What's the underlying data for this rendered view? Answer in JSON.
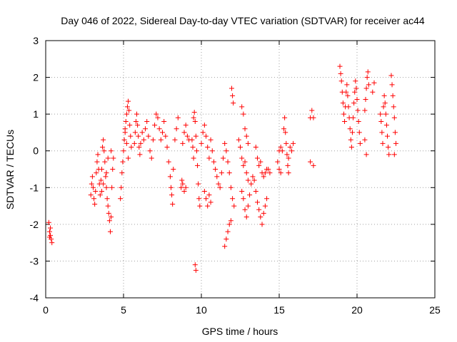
{
  "chart_data": {
    "type": "scatter",
    "title": "Day 046 of 2022, Sidereal Day-to-day VTEC variation (SDTVAR) for receiver ac44",
    "xlabel": "GPS time / hours",
    "ylabel": "SDTVAR / TECUs",
    "xlim": [
      0,
      25
    ],
    "ylim": [
      -4,
      3
    ],
    "xticks": [
      0,
      5,
      10,
      15,
      20,
      25
    ],
    "yticks": [
      -4,
      -3,
      -2,
      -1,
      0,
      1,
      2,
      3
    ],
    "xtick_labels": [
      "0",
      "5",
      "10",
      "15",
      "20",
      "25"
    ],
    "ytick_labels": [
      "-4",
      "-3",
      "-2",
      "-1",
      "0",
      "1",
      "2",
      "3"
    ],
    "grid": true,
    "marker": "plus",
    "color": "#ff0000",
    "series": [
      {
        "name": "SDTVAR",
        "points": [
          [
            0.2,
            -1.95
          ],
          [
            0.25,
            -2.2
          ],
          [
            0.3,
            -2.3
          ],
          [
            0.35,
            -2.4
          ],
          [
            0.4,
            -2.5
          ],
          [
            0.3,
            -2.1
          ],
          [
            0.25,
            -2.35
          ],
          [
            2.9,
            -1.2
          ],
          [
            2.95,
            -0.9
          ],
          [
            3.0,
            -0.7
          ],
          [
            3.05,
            -1.0
          ],
          [
            3.1,
            -1.3
          ],
          [
            3.15,
            -1.45
          ],
          [
            3.2,
            -1.1
          ],
          [
            3.25,
            -0.6
          ],
          [
            3.3,
            -0.3
          ],
          [
            3.35,
            -0.1
          ],
          [
            3.4,
            -0.5
          ],
          [
            3.45,
            -0.9
          ],
          [
            3.5,
            -1.2
          ],
          [
            3.55,
            -0.8
          ],
          [
            3.6,
            -0.5
          ],
          [
            3.65,
            0.1
          ],
          [
            3.7,
            0.3
          ],
          [
            3.75,
            0.0
          ],
          [
            3.8,
            -0.3
          ],
          [
            3.85,
            -0.7
          ],
          [
            3.9,
            -1.0
          ],
          [
            3.95,
            -1.3
          ],
          [
            4.0,
            -1.5
          ],
          [
            4.05,
            -1.7
          ],
          [
            4.1,
            -1.9
          ],
          [
            4.15,
            -2.2
          ],
          [
            4.2,
            -1.8
          ],
          [
            4.25,
            -1.0
          ],
          [
            4.3,
            -0.5
          ],
          [
            4.35,
            -0.2
          ],
          [
            4.2,
            0.0
          ],
          [
            4.0,
            -0.2
          ],
          [
            3.9,
            -0.6
          ],
          [
            3.7,
            -0.9
          ],
          [
            3.6,
            -1.1
          ],
          [
            4.8,
            -1.3
          ],
          [
            4.85,
            -1.0
          ],
          [
            4.9,
            -0.6
          ],
          [
            4.95,
            -0.3
          ],
          [
            5.0,
            0.0
          ],
          [
            5.05,
            0.3
          ],
          [
            5.1,
            0.6
          ],
          [
            5.15,
            0.8
          ],
          [
            5.2,
            1.0
          ],
          [
            5.25,
            1.2
          ],
          [
            5.3,
            1.35
          ],
          [
            5.35,
            1.1
          ],
          [
            5.4,
            0.7
          ],
          [
            5.45,
            0.4
          ],
          [
            5.5,
            0.1
          ],
          [
            5.3,
            -0.2
          ],
          [
            5.2,
            0.2
          ],
          [
            5.1,
            0.5
          ],
          [
            5.7,
            0.2
          ],
          [
            5.75,
            0.5
          ],
          [
            5.8,
            0.8
          ],
          [
            5.85,
            1.0
          ],
          [
            5.9,
            0.7
          ],
          [
            5.95,
            0.4
          ],
          [
            6.0,
            0.1
          ],
          [
            6.05,
            -0.1
          ],
          [
            6.1,
            0.2
          ],
          [
            6.2,
            0.5
          ],
          [
            6.3,
            0.3
          ],
          [
            6.4,
            0.6
          ],
          [
            6.5,
            0.8
          ],
          [
            6.6,
            0.4
          ],
          [
            6.7,
            0.0
          ],
          [
            6.8,
            -0.2
          ],
          [
            6.9,
            0.3
          ],
          [
            7.0,
            0.7
          ],
          [
            7.1,
            1.0
          ],
          [
            7.2,
            0.9
          ],
          [
            7.3,
            0.6
          ],
          [
            7.4,
            0.3
          ],
          [
            7.5,
            0.5
          ],
          [
            7.6,
            0.8
          ],
          [
            7.7,
            0.4
          ],
          [
            7.8,
            0.1
          ],
          [
            7.9,
            -0.3
          ],
          [
            8.0,
            -0.7
          ],
          [
            8.05,
            -1.0
          ],
          [
            8.1,
            -1.2
          ],
          [
            8.15,
            -1.45
          ],
          [
            8.2,
            -0.5
          ],
          [
            8.3,
            0.3
          ],
          [
            8.4,
            0.6
          ],
          [
            8.5,
            0.9
          ],
          [
            8.7,
            -1.0
          ],
          [
            8.75,
            -0.8
          ],
          [
            8.8,
            -0.9
          ],
          [
            8.9,
            -1.1
          ],
          [
            9.0,
            -1.0
          ],
          [
            8.8,
            0.2
          ],
          [
            8.9,
            0.5
          ],
          [
            9.0,
            0.7
          ],
          [
            9.1,
            0.4
          ],
          [
            9.2,
            0.3
          ],
          [
            9.5,
            0.9
          ],
          [
            9.55,
            1.05
          ],
          [
            9.6,
            0.8
          ],
          [
            9.65,
            0.4
          ],
          [
            9.7,
            0.0
          ],
          [
            9.75,
            -0.4
          ],
          [
            9.8,
            -0.9
          ],
          [
            9.85,
            -1.3
          ],
          [
            9.9,
            -1.5
          ],
          [
            9.6,
            -3.1
          ],
          [
            9.65,
            -3.25
          ],
          [
            9.4,
            0.3
          ],
          [
            9.45,
            0.1
          ],
          [
            9.5,
            -0.2
          ],
          [
            10.0,
            0.2
          ],
          [
            10.1,
            0.5
          ],
          [
            10.2,
            0.7
          ],
          [
            10.3,
            0.4
          ],
          [
            10.4,
            0.1
          ],
          [
            10.5,
            -0.2
          ],
          [
            10.6,
            0.3
          ],
          [
            10.7,
            0.0
          ],
          [
            10.8,
            -0.3
          ],
          [
            10.9,
            -0.5
          ],
          [
            11.0,
            -0.7
          ],
          [
            11.1,
            -0.9
          ],
          [
            11.2,
            -1.0
          ],
          [
            11.3,
            -0.6
          ],
          [
            11.4,
            -0.2
          ],
          [
            11.5,
            0.2
          ],
          [
            11.6,
            0.0
          ],
          [
            11.7,
            -0.3
          ],
          [
            11.8,
            -0.6
          ],
          [
            11.9,
            -1.0
          ],
          [
            12.0,
            -1.3
          ],
          [
            12.1,
            -1.5
          ],
          [
            10.2,
            -1.1
          ],
          [
            10.3,
            -1.3
          ],
          [
            10.4,
            -1.5
          ],
          [
            10.5,
            -1.2
          ],
          [
            10.6,
            -1.4
          ],
          [
            11.5,
            -2.6
          ],
          [
            11.6,
            -2.4
          ],
          [
            11.7,
            -2.2
          ],
          [
            11.8,
            -2.0
          ],
          [
            11.9,
            -1.9
          ],
          [
            11.95,
            1.7
          ],
          [
            12.0,
            1.5
          ],
          [
            12.05,
            1.3
          ],
          [
            12.4,
            0.3
          ],
          [
            12.5,
            0.1
          ],
          [
            12.6,
            -0.2
          ],
          [
            12.7,
            -0.4
          ],
          [
            12.8,
            -0.3
          ],
          [
            12.9,
            -0.6
          ],
          [
            13.0,
            -0.8
          ],
          [
            12.6,
            1.2
          ],
          [
            12.7,
            1.0
          ],
          [
            12.8,
            0.6
          ],
          [
            12.9,
            0.4
          ],
          [
            13.0,
            0.2
          ],
          [
            12.6,
            -1.1
          ],
          [
            12.7,
            -1.3
          ],
          [
            12.8,
            -1.6
          ],
          [
            12.9,
            -1.8
          ],
          [
            13.0,
            -1.5
          ],
          [
            13.1,
            -1.2
          ],
          [
            13.2,
            -0.9
          ],
          [
            13.3,
            -0.7
          ],
          [
            13.4,
            -0.8
          ],
          [
            13.5,
            -1.1
          ],
          [
            13.6,
            -1.4
          ],
          [
            13.7,
            -1.6
          ],
          [
            13.8,
            -1.8
          ],
          [
            13.9,
            -2.0
          ],
          [
            14.0,
            -1.7
          ],
          [
            14.1,
            -1.5
          ],
          [
            14.2,
            -1.3
          ],
          [
            13.5,
            0.1
          ],
          [
            13.6,
            -0.2
          ],
          [
            13.7,
            -0.4
          ],
          [
            13.8,
            -0.3
          ],
          [
            13.9,
            -0.6
          ],
          [
            14.0,
            -0.7
          ],
          [
            14.1,
            -0.6
          ],
          [
            14.2,
            -0.5
          ],
          [
            14.3,
            -0.5
          ],
          [
            14.4,
            -0.6
          ],
          [
            14.9,
            -0.3
          ],
          [
            15.0,
            -0.5
          ],
          [
            15.1,
            -0.6
          ],
          [
            15.0,
            0.0
          ],
          [
            15.1,
            0.1
          ],
          [
            15.2,
            0.0
          ],
          [
            15.3,
            0.6
          ],
          [
            15.35,
            0.9
          ],
          [
            15.4,
            0.5
          ],
          [
            15.45,
            0.2
          ],
          [
            15.5,
            -0.1
          ],
          [
            15.55,
            -0.4
          ],
          [
            15.6,
            -0.2
          ],
          [
            15.7,
            0.1
          ],
          [
            15.8,
            0.0
          ],
          [
            15.9,
            0.2
          ],
          [
            15.6,
            -0.6
          ],
          [
            17.0,
            0.9
          ],
          [
            17.1,
            1.1
          ],
          [
            17.2,
            0.9
          ],
          [
            17.0,
            -0.3
          ],
          [
            17.2,
            -0.4
          ],
          [
            18.9,
            2.3
          ],
          [
            18.95,
            2.1
          ],
          [
            19.0,
            1.9
          ],
          [
            19.05,
            1.6
          ],
          [
            19.1,
            1.3
          ],
          [
            19.15,
            1.0
          ],
          [
            19.2,
            0.8
          ],
          [
            19.25,
            1.2
          ],
          [
            19.3,
            1.6
          ],
          [
            19.35,
            1.8
          ],
          [
            19.4,
            1.5
          ],
          [
            19.45,
            1.2
          ],
          [
            19.5,
            0.9
          ],
          [
            19.55,
            0.6
          ],
          [
            19.6,
            0.3
          ],
          [
            19.65,
            0.1
          ],
          [
            19.7,
            0.5
          ],
          [
            19.75,
            0.9
          ],
          [
            19.8,
            1.3
          ],
          [
            19.85,
            1.6
          ],
          [
            19.9,
            1.9
          ],
          [
            19.95,
            1.7
          ],
          [
            20.0,
            1.4
          ],
          [
            20.05,
            1.1
          ],
          [
            20.1,
            0.8
          ],
          [
            20.15,
            0.5
          ],
          [
            20.2,
            0.2
          ],
          [
            20.5,
            1.1
          ],
          [
            20.55,
            1.4
          ],
          [
            20.6,
            1.7
          ],
          [
            20.65,
            2.0
          ],
          [
            20.7,
            2.15
          ],
          [
            20.75,
            1.8
          ],
          [
            20.6,
            -0.1
          ],
          [
            20.5,
            0.3
          ],
          [
            21.0,
            1.6
          ],
          [
            21.1,
            1.85
          ],
          [
            21.5,
            1.0
          ],
          [
            21.55,
            0.8
          ],
          [
            21.6,
            0.5
          ],
          [
            21.65,
            0.2
          ],
          [
            21.7,
            1.2
          ],
          [
            21.75,
            1.5
          ],
          [
            21.8,
            1.3
          ],
          [
            21.85,
            1.0
          ],
          [
            21.9,
            0.7
          ],
          [
            21.95,
            0.4
          ],
          [
            22.0,
            0.1
          ],
          [
            22.05,
            -0.1
          ],
          [
            22.2,
            2.05
          ],
          [
            22.25,
            1.8
          ],
          [
            22.3,
            1.5
          ],
          [
            22.35,
            1.2
          ],
          [
            22.4,
            0.9
          ],
          [
            22.45,
            0.5
          ],
          [
            22.5,
            0.2
          ],
          [
            22.4,
            -0.1
          ]
        ]
      }
    ]
  }
}
